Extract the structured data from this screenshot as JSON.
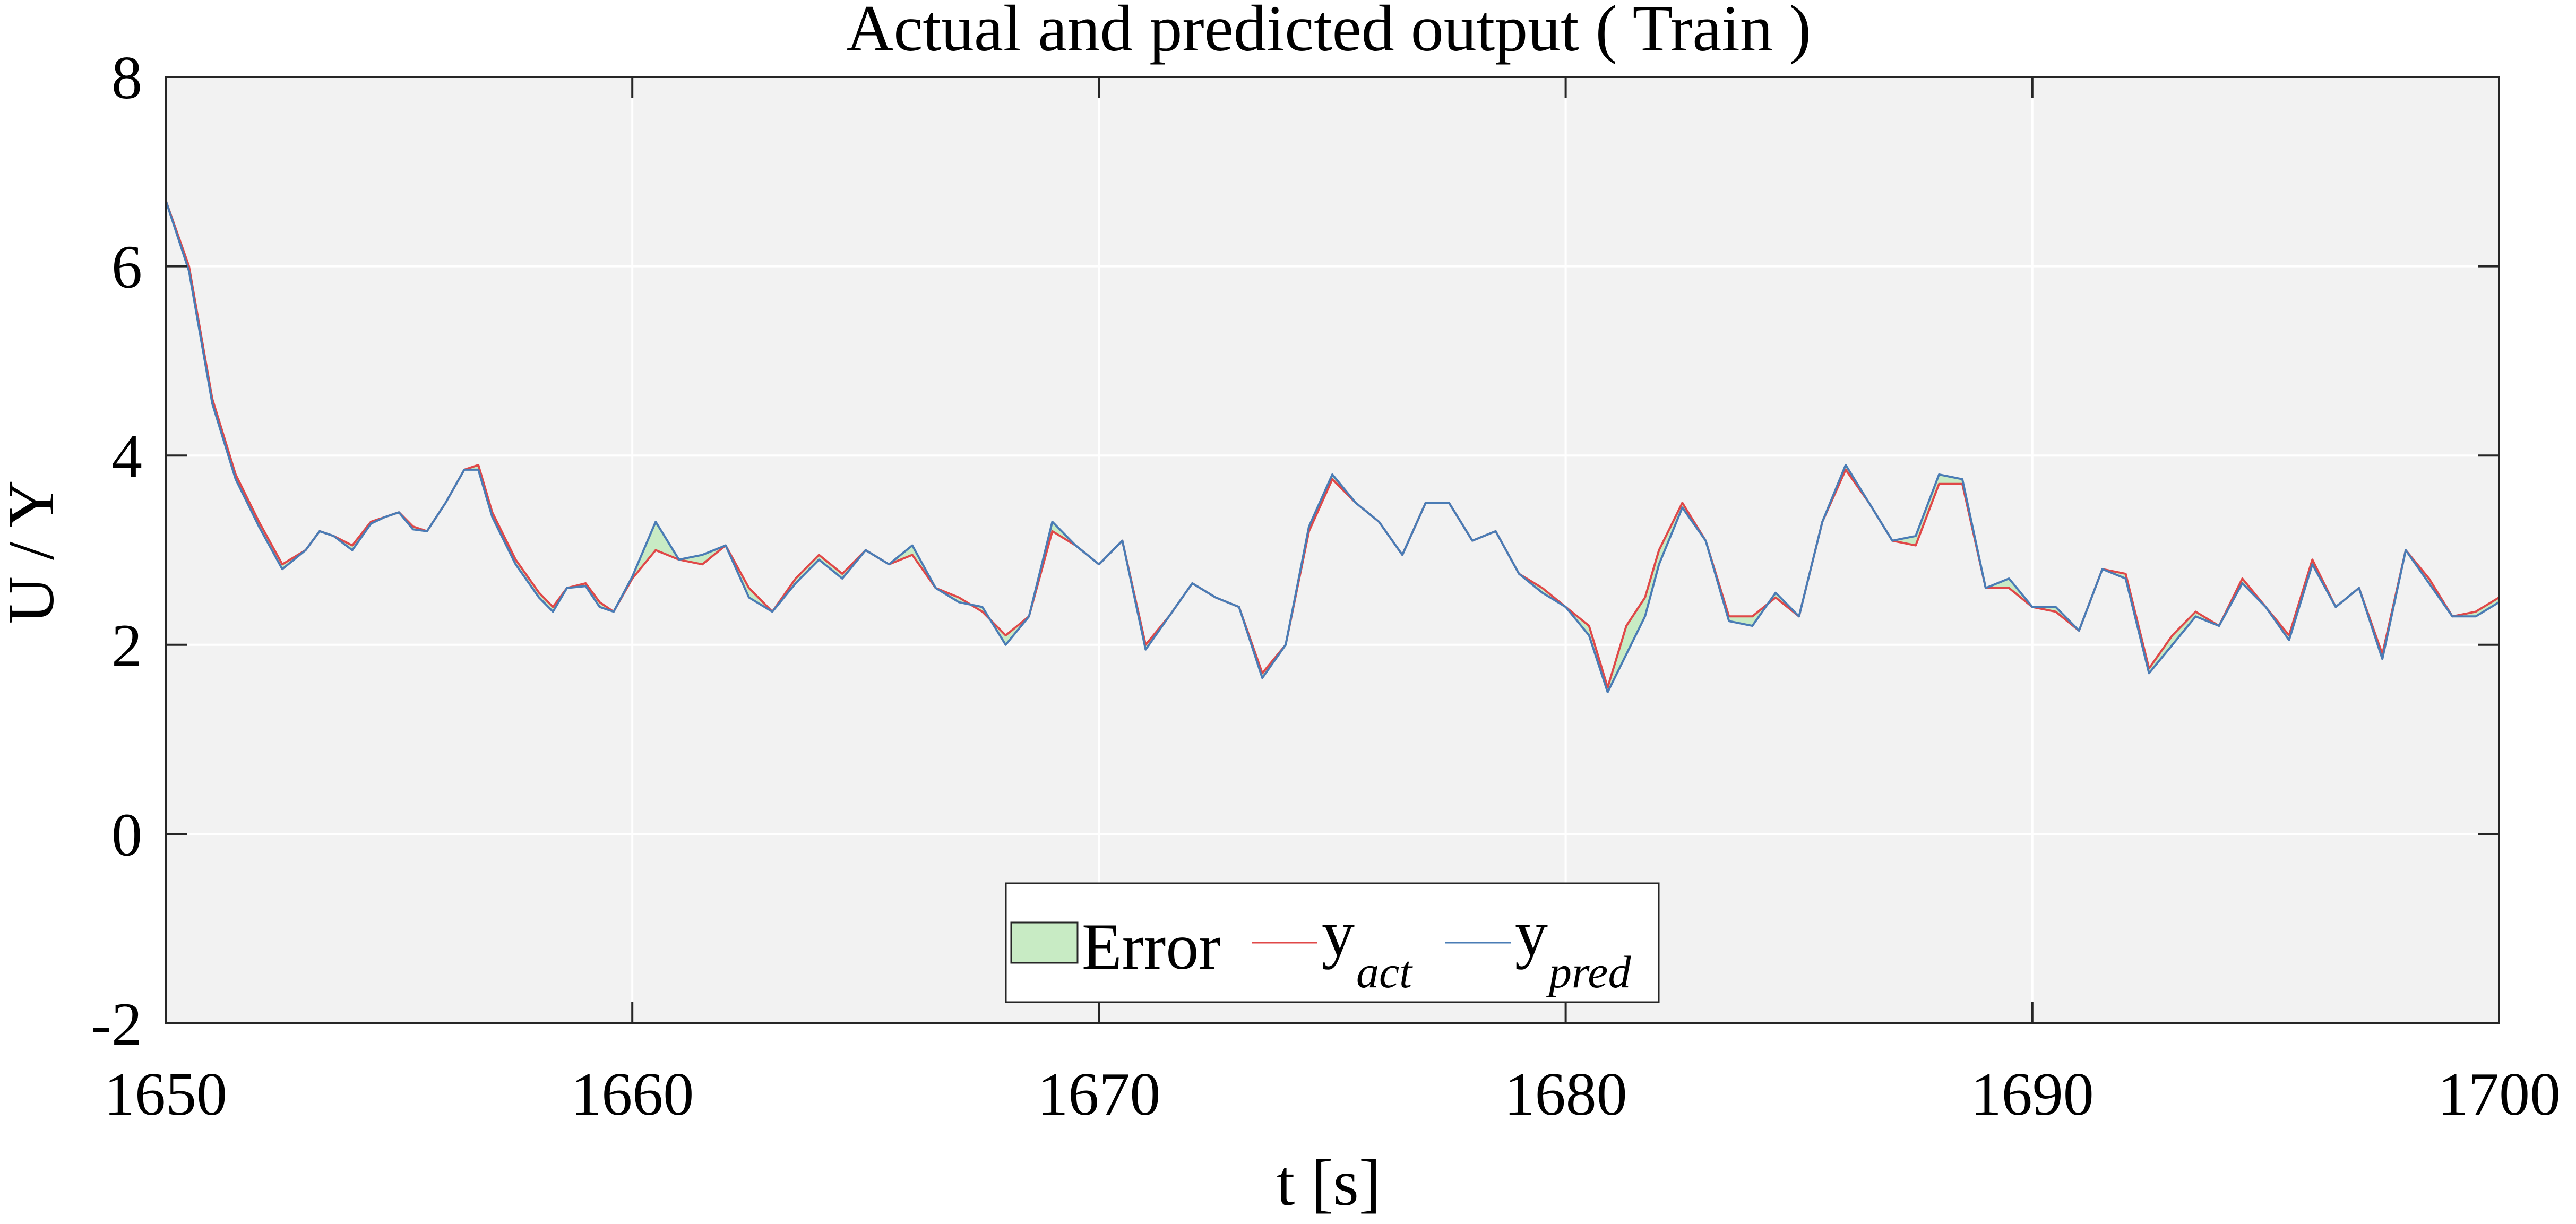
{
  "chart_data": {
    "type": "line",
    "title": "Actual and predicted output ( Train  )",
    "xlabel": "t [s]",
    "ylabel": "U / Y",
    "xlim": [
      1650,
      1700
    ],
    "ylim": [
      -2,
      8
    ],
    "xticks": [
      1650,
      1660,
      1670,
      1680,
      1690,
      1700
    ],
    "yticks": [
      -2,
      0,
      2,
      4,
      6,
      8
    ],
    "xtick_labels": [
      "1650",
      "1660",
      "1670",
      "1680",
      "1690",
      "1700"
    ],
    "ytick_labels": [
      "-2",
      "0",
      "2",
      "4",
      "6",
      "8"
    ],
    "grid": true,
    "legend_position": "bottom-center",
    "legend": [
      {
        "label": "Error",
        "subscript": "",
        "kind": "patch",
        "color": "#c8ebc4"
      },
      {
        "label": "y",
        "subscript": "act",
        "kind": "line",
        "color": "#e04848"
      },
      {
        "label": "y",
        "subscript": "pred",
        "kind": "line",
        "color": "#4a7cb5"
      }
    ],
    "x": [
      1650.0,
      1650.5,
      1651.0,
      1651.5,
      1652.0,
      1652.5,
      1653.0,
      1653.3,
      1653.6,
      1654.0,
      1654.4,
      1654.7,
      1655.0,
      1655.3,
      1655.6,
      1656.0,
      1656.4,
      1656.7,
      1657.0,
      1657.5,
      1658.0,
      1658.3,
      1658.6,
      1659.0,
      1659.3,
      1659.6,
      1660.0,
      1660.5,
      1661.0,
      1661.5,
      1662.0,
      1662.5,
      1663.0,
      1663.5,
      1664.0,
      1664.5,
      1665.0,
      1665.5,
      1666.0,
      1666.5,
      1667.0,
      1667.5,
      1668.0,
      1668.5,
      1669.0,
      1669.5,
      1670.0,
      1670.5,
      1671.0,
      1671.5,
      1672.0,
      1672.5,
      1673.0,
      1673.5,
      1674.0,
      1674.5,
      1675.0,
      1675.5,
      1676.0,
      1676.5,
      1677.0,
      1677.5,
      1678.0,
      1678.5,
      1679.0,
      1679.5,
      1680.0,
      1680.5,
      1680.9,
      1681.3,
      1681.7,
      1682.0,
      1682.5,
      1683.0,
      1683.5,
      1684.0,
      1684.5,
      1685.0,
      1685.5,
      1686.0,
      1686.5,
      1687.0,
      1687.5,
      1688.0,
      1688.5,
      1689.0,
      1689.5,
      1690.0,
      1690.5,
      1691.0,
      1691.5,
      1692.0,
      1692.5,
      1693.0,
      1693.5,
      1694.0,
      1694.5,
      1695.0,
      1695.5,
      1696.0,
      1696.5,
      1697.0,
      1697.5,
      1698.0,
      1698.5,
      1699.0,
      1699.5,
      1700.0
    ],
    "series": [
      {
        "name": "y_act",
        "values": [
          6.7,
          6.0,
          4.6,
          3.8,
          3.3,
          2.85,
          3.0,
          3.2,
          3.15,
          3.05,
          3.3,
          3.35,
          3.4,
          3.25,
          3.2,
          3.5,
          3.85,
          3.9,
          3.4,
          2.9,
          2.55,
          2.4,
          2.6,
          2.65,
          2.45,
          2.35,
          2.7,
          3.0,
          2.9,
          2.85,
          3.05,
          2.6,
          2.35,
          2.7,
          2.95,
          2.75,
          3.0,
          2.85,
          2.95,
          2.6,
          2.5,
          2.35,
          2.1,
          2.3,
          3.2,
          3.05,
          2.85,
          3.1,
          2.0,
          2.3,
          2.65,
          2.5,
          2.4,
          1.7,
          2.0,
          3.2,
          3.75,
          3.5,
          3.3,
          2.95,
          3.5,
          3.5,
          3.1,
          3.2,
          2.75,
          2.6,
          2.4,
          2.2,
          1.55,
          2.2,
          2.5,
          3.0,
          3.5,
          3.1,
          2.3,
          2.3,
          2.5,
          2.3,
          3.3,
          3.85,
          3.5,
          3.1,
          3.05,
          3.7,
          3.7,
          2.6,
          2.6,
          2.4,
          2.35,
          2.15,
          2.8,
          2.75,
          1.75,
          2.1,
          2.35,
          2.2,
          2.7,
          2.4,
          2.1,
          2.9,
          2.4,
          2.6,
          1.9,
          3.0,
          2.7,
          2.3,
          2.35,
          2.5
        ]
      },
      {
        "name": "y_pred",
        "values": [
          6.7,
          5.95,
          4.55,
          3.75,
          3.25,
          2.8,
          3.0,
          3.2,
          3.15,
          3.0,
          3.28,
          3.35,
          3.4,
          3.22,
          3.2,
          3.5,
          3.85,
          3.85,
          3.35,
          2.85,
          2.5,
          2.35,
          2.6,
          2.62,
          2.4,
          2.35,
          2.72,
          3.3,
          2.9,
          2.95,
          3.05,
          2.5,
          2.35,
          2.65,
          2.9,
          2.7,
          3.0,
          2.85,
          3.05,
          2.6,
          2.45,
          2.4,
          2.0,
          2.3,
          3.3,
          3.05,
          2.85,
          3.1,
          1.95,
          2.3,
          2.65,
          2.5,
          2.4,
          1.65,
          2.0,
          3.25,
          3.8,
          3.5,
          3.3,
          2.95,
          3.5,
          3.5,
          3.1,
          3.2,
          2.75,
          2.55,
          2.4,
          2.1,
          1.5,
          1.9,
          2.3,
          2.85,
          3.45,
          3.1,
          2.25,
          2.2,
          2.55,
          2.3,
          3.3,
          3.9,
          3.5,
          3.1,
          3.15,
          3.8,
          3.75,
          2.6,
          2.7,
          2.4,
          2.4,
          2.15,
          2.8,
          2.7,
          1.7,
          2.0,
          2.3,
          2.2,
          2.65,
          2.4,
          2.05,
          2.85,
          2.4,
          2.6,
          1.85,
          3.0,
          2.65,
          2.3,
          2.3,
          2.45
        ]
      }
    ],
    "fill_between": {
      "name": "Error",
      "between": [
        "y_act",
        "y_pred"
      ]
    }
  }
}
